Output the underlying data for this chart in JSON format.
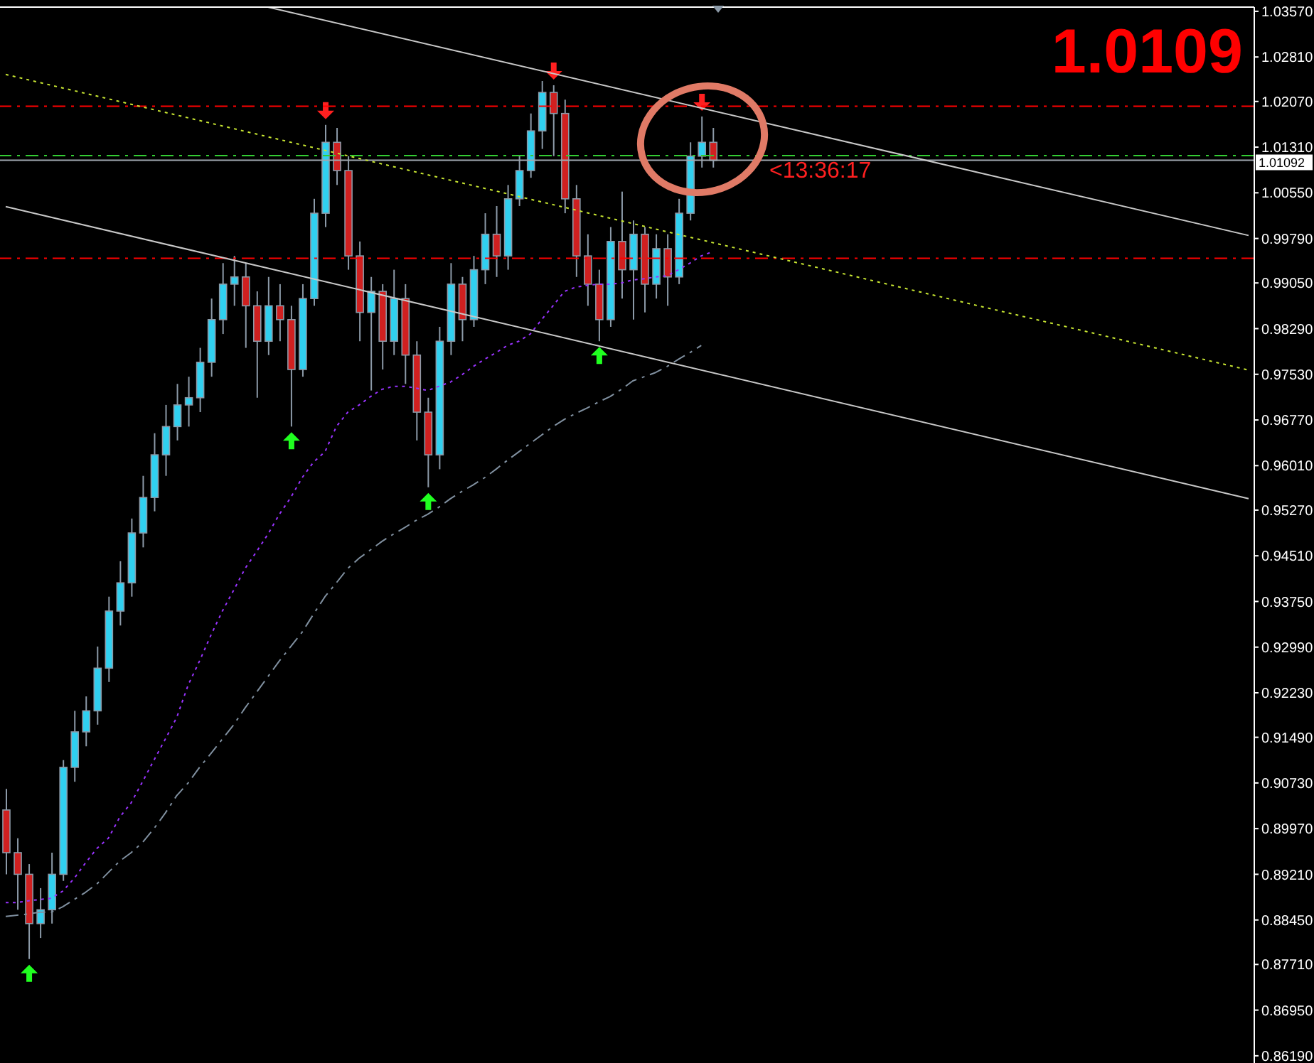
{
  "chart_data": {
    "type": "candlestick",
    "title": "1.0109",
    "annotations": [
      "<13:36:17"
    ],
    "categories": [
      null,
      null,
      null,
      null,
      null,
      null,
      null,
      null,
      null,
      null,
      null,
      null,
      null,
      null,
      null,
      null,
      null,
      null,
      null,
      null,
      null,
      null,
      null,
      null,
      null,
      null,
      null,
      null,
      null,
      null,
      null,
      null,
      null,
      null,
      null,
      null,
      null,
      null,
      null,
      null,
      null,
      null,
      null,
      null,
      null,
      null,
      null,
      null,
      null,
      null,
      null,
      null,
      null,
      null,
      null,
      null,
      null,
      null,
      null,
      null,
      null,
      null,
      null,
      null,
      null,
      null,
      null,
      null,
      null,
      null,
      null,
      null,
      null,
      null,
      null,
      null,
      null,
      null,
      null,
      null,
      null,
      null,
      null,
      null,
      null,
      null,
      null,
      null,
      null,
      null,
      null,
      null,
      null,
      null,
      null,
      null,
      null,
      null,
      null,
      null,
      null,
      null,
      null,
      null,
      null,
      null,
      null,
      null,
      null,
      null
    ],
    "ohlc": [
      [
        0.9028,
        0.9063,
        0.8921,
        0.8957
      ],
      [
        0.8957,
        0.8981,
        0.8862,
        0.8921
      ],
      [
        0.8921,
        0.8938,
        0.878,
        0.8839
      ],
      [
        0.8839,
        0.8898,
        0.8815,
        0.8862
      ],
      [
        0.8862,
        0.8957,
        0.8839,
        0.8921
      ],
      [
        0.8921,
        0.9111,
        0.891,
        0.9099
      ],
      [
        0.9099,
        0.9193,
        0.9075,
        0.9158
      ],
      [
        0.9158,
        0.9217,
        0.9134,
        0.9193
      ],
      [
        0.9193,
        0.93,
        0.917,
        0.9264
      ],
      [
        0.9264,
        0.9383,
        0.9241,
        0.9359
      ],
      [
        0.9359,
        0.9442,
        0.9335,
        0.9406
      ],
      [
        0.9406,
        0.9513,
        0.9383,
        0.9489
      ],
      [
        0.9489,
        0.9584,
        0.9465,
        0.9548
      ],
      [
        0.9548,
        0.9655,
        0.9525,
        0.9619
      ],
      [
        0.9619,
        0.9702,
        0.9584,
        0.9666
      ],
      [
        0.9666,
        0.9737,
        0.9643,
        0.9702
      ],
      [
        0.9702,
        0.9749,
        0.9666,
        0.9714
      ],
      [
        0.9714,
        0.9797,
        0.969,
        0.9773
      ],
      [
        0.9773,
        0.9879,
        0.9749,
        0.9844
      ],
      [
        0.9844,
        0.9938,
        0.982,
        0.9903
      ],
      [
        0.9903,
        0.995,
        0.9867,
        0.9915
      ],
      [
        0.9915,
        0.9938,
        0.9797,
        0.9867
      ],
      [
        0.9867,
        0.9891,
        0.9714,
        0.9808
      ],
      [
        0.9808,
        0.9915,
        0.9785,
        0.9867
      ],
      [
        0.9867,
        0.9903,
        0.9808,
        0.9844
      ],
      [
        0.9844,
        0.9867,
        0.9666,
        0.9761
      ],
      [
        0.9761,
        0.9903,
        0.9749,
        0.9879
      ],
      [
        0.9879,
        1.0045,
        0.9867,
        1.0021
      ],
      [
        1.0021,
        1.0168,
        0.9998,
        1.0139
      ],
      [
        1.0139,
        1.0163,
        1.0068,
        1.0092
      ],
      [
        1.0092,
        1.0116,
        0.9927,
        0.995
      ],
      [
        0.995,
        0.9974,
        0.9808,
        0.9856
      ],
      [
        0.9856,
        0.9915,
        0.9726,
        0.9891
      ],
      [
        0.9891,
        0.9903,
        0.9761,
        0.9808
      ],
      [
        0.9808,
        0.9927,
        0.9785,
        0.9879
      ],
      [
        0.9879,
        0.9903,
        0.9737,
        0.9785
      ],
      [
        0.9785,
        0.9808,
        0.9643,
        0.969
      ],
      [
        0.969,
        0.9714,
        0.9565,
        0.9619
      ],
      [
        0.9619,
        0.9832,
        0.9595,
        0.9808
      ],
      [
        0.9808,
        0.9938,
        0.9785,
        0.9903
      ],
      [
        0.9903,
        0.9915,
        0.9808,
        0.9844
      ],
      [
        0.9844,
        0.995,
        0.9832,
        0.9927
      ],
      [
        0.9927,
        1.0021,
        0.9903,
        0.9986
      ],
      [
        0.9986,
        1.0033,
        0.9915,
        0.995
      ],
      [
        0.995,
        1.0068,
        0.9927,
        1.0045
      ],
      [
        1.0045,
        1.0116,
        1.0033,
        1.0092
      ],
      [
        1.0092,
        1.0187,
        1.008,
        1.0158
      ],
      [
        1.0158,
        1.0241,
        1.0128,
        1.0222
      ],
      [
        1.0222,
        1.0234,
        1.0116,
        1.0187
      ],
      [
        1.0187,
        1.021,
        1.0021,
        1.0045
      ],
      [
        1.0045,
        1.0068,
        0.9915,
        0.995
      ],
      [
        0.995,
        0.9986,
        0.9867,
        0.9903
      ],
      [
        0.9903,
        0.9927,
        0.9808,
        0.9844
      ],
      [
        0.9844,
        0.9998,
        0.9832,
        0.9974
      ],
      [
        0.9974,
        1.0057,
        0.9879,
        0.9927
      ],
      [
        0.9927,
        1.0009,
        0.9844,
        0.9986
      ],
      [
        0.9986,
        0.9998,
        0.9856,
        0.9903
      ],
      [
        0.9903,
        0.9986,
        0.9879,
        0.9962
      ],
      [
        0.9962,
        0.9986,
        0.9867,
        0.9915
      ],
      [
        0.9915,
        1.0045,
        0.9903,
        1.0021
      ],
      [
        1.0021,
        1.0139,
        1.0009,
        1.0116
      ],
      [
        1.0116,
        1.0182,
        1.0097,
        1.0139
      ],
      [
        1.0139,
        1.0163,
        1.0097,
        1.0109
      ],
      null,
      null,
      null,
      null,
      null,
      null,
      null,
      null,
      null,
      null,
      null,
      null,
      null,
      null,
      null,
      null,
      null,
      null,
      null,
      null,
      null,
      null,
      null,
      null,
      null,
      null,
      null,
      null,
      null,
      null,
      null,
      null,
      null,
      null,
      null,
      null,
      null,
      null,
      null,
      null,
      null,
      null,
      null,
      null,
      null,
      null,
      null
    ],
    "series": [
      {
        "type": "line",
        "color": "#9933ff",
        "line_style": "dotted",
        "values": [
          0.8874,
          0.8874,
          0.8877,
          0.8879,
          0.8881,
          0.8893,
          0.8914,
          0.894,
          0.8964,
          0.8981,
          0.9016,
          0.904,
          0.9075,
          0.9111,
          0.9146,
          0.9182,
          0.9236,
          0.9276,
          0.9319,
          0.9359,
          0.9394,
          0.943,
          0.9458,
          0.9487,
          0.952,
          0.9548,
          0.9581,
          0.9607,
          0.9624,
          0.9666,
          0.969,
          0.9702,
          0.9716,
          0.9728,
          0.9733,
          0.9733,
          0.973,
          0.9726,
          0.9733,
          0.974,
          0.9752,
          0.9766,
          0.9778,
          0.9789,
          0.9801,
          0.9808,
          0.982,
          0.9844,
          0.9867,
          0.9891,
          0.9898,
          0.9901,
          0.9903,
          0.9903,
          0.9905,
          0.991,
          0.9912,
          0.9915,
          0.9917,
          0.9927,
          0.9938,
          0.995,
          0.9957,
          null,
          null,
          null,
          null,
          null,
          null,
          null,
          null,
          null,
          null,
          null,
          null,
          null,
          null,
          null,
          null,
          null,
          null,
          null,
          null,
          null,
          null,
          null,
          null,
          null,
          null,
          null,
          null,
          null,
          null,
          null,
          null,
          null,
          null,
          null,
          null,
          null,
          null,
          null,
          null,
          null,
          null,
          null,
          null,
          null,
          null,
          null
        ]
      },
      {
        "type": "line",
        "color": "#8090a0",
        "line_style": "dashed",
        "values": [
          0.8851,
          0.8853,
          0.8855,
          0.8858,
          0.8858,
          0.8867,
          0.8879,
          0.8891,
          0.8905,
          0.8924,
          0.8943,
          0.8957,
          0.8974,
          0.8997,
          0.9023,
          0.9052,
          0.9073,
          0.9099,
          0.9122,
          0.9146,
          0.917,
          0.9198,
          0.9224,
          0.925,
          0.9276,
          0.93,
          0.9324,
          0.9354,
          0.9383,
          0.9406,
          0.943,
          0.9447,
          0.9461,
          0.9475,
          0.9487,
          0.9498,
          0.951,
          0.952,
          0.9532,
          0.9546,
          0.9558,
          0.9569,
          0.9581,
          0.9595,
          0.961,
          0.9624,
          0.9638,
          0.9652,
          0.9666,
          0.9678,
          0.9688,
          0.9697,
          0.9707,
          0.9716,
          0.9728,
          0.9742,
          0.9749,
          0.9756,
          0.9766,
          0.9778,
          0.9789,
          0.9801,
          null,
          null,
          null,
          null,
          null,
          null,
          null,
          null,
          null,
          null,
          null,
          null,
          null,
          null,
          null,
          null,
          null,
          null,
          null,
          null,
          null,
          null,
          null,
          null,
          null,
          null,
          null,
          null,
          null,
          null,
          null,
          null,
          null,
          null,
          null,
          null,
          null,
          null,
          null,
          null,
          null,
          null,
          null,
          null,
          null,
          null,
          null,
          null
        ]
      },
      {
        "type": "line",
        "color": "#c8c8c8",
        "line_style": "solid",
        "values": [
          null,
          null,
          null,
          null,
          null,
          null,
          null,
          null,
          null,
          null,
          null,
          null,
          null,
          null,
          null,
          null,
          null,
          null,
          null,
          null,
          null,
          null,
          null,
          1.0364,
          null,
          null,
          null,
          null,
          null,
          null,
          null,
          null,
          null,
          null,
          null,
          null,
          null,
          null,
          null,
          null,
          null,
          null,
          null,
          null,
          null,
          null,
          null,
          null,
          null,
          null,
          null,
          null,
          null,
          null,
          null,
          null,
          null,
          null,
          null,
          null,
          null,
          null,
          null,
          null,
          null,
          null,
          null,
          null,
          null,
          null,
          null,
          null,
          null,
          null,
          null,
          null,
          null,
          null,
          null,
          null,
          null,
          null,
          null,
          null,
          null,
          null,
          null,
          null,
          null,
          null,
          null,
          null,
          null,
          null,
          null,
          null,
          null,
          null,
          null,
          null,
          null,
          null,
          null,
          null,
          null,
          null,
          null,
          null,
          null,
          0.9984
        ]
      },
      {
        "type": "line",
        "color": "#c8c8c8",
        "line_style": "solid",
        "values": [
          1.0032,
          null,
          null,
          null,
          null,
          null,
          null,
          null,
          null,
          null,
          null,
          null,
          null,
          null,
          null,
          null,
          null,
          null,
          null,
          null,
          null,
          null,
          null,
          null,
          null,
          null,
          null,
          null,
          null,
          null,
          null,
          null,
          null,
          null,
          null,
          null,
          null,
          null,
          null,
          null,
          null,
          null,
          null,
          null,
          null,
          null,
          null,
          null,
          null,
          null,
          null,
          null,
          null,
          null,
          null,
          null,
          null,
          null,
          null,
          null,
          null,
          null,
          null,
          null,
          null,
          null,
          null,
          null,
          null,
          null,
          null,
          null,
          null,
          null,
          null,
          null,
          null,
          null,
          null,
          null,
          null,
          null,
          null,
          null,
          null,
          null,
          null,
          null,
          null,
          null,
          null,
          null,
          null,
          null,
          null,
          null,
          null,
          null,
          null,
          null,
          null,
          null,
          null,
          null,
          null,
          null,
          null,
          null,
          null,
          0.9546
        ]
      },
      {
        "type": "line",
        "color": "#c8e632",
        "line_style": "dotted",
        "values": [
          1.0252,
          null,
          null,
          null,
          null,
          null,
          null,
          null,
          null,
          null,
          null,
          null,
          null,
          null,
          null,
          null,
          null,
          null,
          null,
          null,
          null,
          null,
          null,
          null,
          null,
          null,
          null,
          null,
          null,
          null,
          null,
          null,
          null,
          null,
          null,
          null,
          null,
          null,
          null,
          null,
          null,
          null,
          null,
          null,
          null,
          null,
          null,
          null,
          null,
          null,
          null,
          null,
          null,
          null,
          null,
          null,
          null,
          null,
          null,
          null,
          null,
          null,
          null,
          null,
          null,
          null,
          null,
          null,
          null,
          null,
          null,
          null,
          null,
          null,
          null,
          null,
          null,
          null,
          null,
          null,
          null,
          null,
          null,
          null,
          null,
          null,
          null,
          null,
          null,
          null,
          null,
          null,
          null,
          null,
          null,
          null,
          null,
          null,
          null,
          null,
          null,
          null,
          null,
          null,
          null,
          null,
          null,
          null,
          null,
          0.976
        ]
      }
    ],
    "ref_lines": [
      {
        "axis": "y",
        "value": 1.0199,
        "color": "#ff0000",
        "line_style": "dashed"
      },
      {
        "axis": "y",
        "value": 1.0117,
        "color": "#33cc33",
        "line_style": "dashed"
      },
      {
        "axis": "y",
        "value": 1.01092,
        "label": "1.01092",
        "color": "#a0a8b0",
        "line_style": "solid"
      },
      {
        "axis": "y",
        "value": 0.9946,
        "color": "#ff0000",
        "line_style": "dashed"
      }
    ],
    "ylim": [
      0.8607,
      1.0364
    ],
    "yticks": [
      {
        "value": 1.0357,
        "label": "1.03570"
      },
      {
        "value": 1.0281,
        "label": "1.02810"
      },
      {
        "value": 1.0207,
        "label": "1.02070"
      },
      {
        "value": 1.0131,
        "label": "1.01310"
      },
      {
        "value": 1.0055,
        "label": "1.00550"
      },
      {
        "value": 0.9979,
        "label": "0.99790"
      },
      {
        "value": 0.9905,
        "label": "0.99050"
      },
      {
        "value": 0.9829,
        "label": "0.98290"
      },
      {
        "value": 0.9753,
        "label": "0.97530"
      },
      {
        "value": 0.9677,
        "label": "0.96770"
      },
      {
        "value": 0.9601,
        "label": "0.96010"
      },
      {
        "value": 0.9527,
        "label": "0.95270"
      },
      {
        "value": 0.9451,
        "label": "0.94510"
      },
      {
        "value": 0.9375,
        "label": "0.93750"
      },
      {
        "value": 0.9299,
        "label": "0.92990"
      },
      {
        "value": 0.9223,
        "label": "0.92230"
      },
      {
        "value": 0.9149,
        "label": "0.91490"
      },
      {
        "value": 0.9073,
        "label": "0.90730"
      },
      {
        "value": 0.8997,
        "label": "0.89970"
      },
      {
        "value": 0.8921,
        "label": "0.89210"
      },
      {
        "value": 0.8845,
        "label": "0.88450"
      },
      {
        "value": 0.8771,
        "label": "0.87710"
      },
      {
        "value": 0.8695,
        "label": "0.86950"
      },
      {
        "value": 0.8619,
        "label": "0.86190"
      }
    ]
  }
}
